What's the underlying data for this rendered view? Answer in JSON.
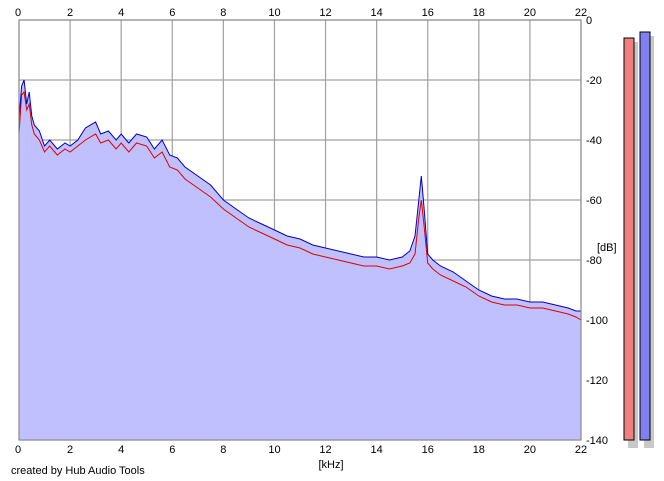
{
  "chart_data": {
    "type": "area",
    "xlabel": "[kHz]",
    "ylabel": "[dB]",
    "xlim": [
      0,
      22
    ],
    "ylim": [
      -140,
      0
    ],
    "x_ticks": [
      0,
      2,
      4,
      6,
      8,
      10,
      12,
      14,
      16,
      18,
      20,
      22
    ],
    "y_ticks": [
      0,
      -20,
      -40,
      -60,
      -80,
      -100,
      -120,
      -140
    ],
    "x_tick_labels": [
      "0",
      "2",
      "4",
      "6",
      "8",
      "10",
      "12",
      "14",
      "16",
      "18",
      "20",
      "22"
    ],
    "y_tick_labels": [
      "0",
      "-20",
      "-40",
      "-60",
      "-80",
      "-100",
      "-120",
      "-140"
    ],
    "grid": true,
    "series": [
      {
        "color": "#0000c0",
        "fill": "#c0c0ff",
        "x": [
          0,
          0.1,
          0.2,
          0.3,
          0.4,
          0.5,
          0.6,
          0.8,
          1.0,
          1.2,
          1.5,
          1.8,
          2.0,
          2.3,
          2.6,
          3.0,
          3.2,
          3.5,
          3.8,
          4.0,
          4.3,
          4.6,
          5.0,
          5.3,
          5.6,
          5.9,
          6.2,
          6.5,
          7.0,
          7.5,
          8.0,
          8.5,
          9.0,
          9.5,
          10.0,
          10.5,
          11.0,
          11.5,
          12.0,
          12.5,
          13.0,
          13.5,
          14.0,
          14.5,
          15.0,
          15.3,
          15.5,
          15.65,
          15.75,
          15.85,
          16.0,
          16.2,
          16.5,
          17.0,
          17.5,
          18.0,
          18.5,
          19.0,
          19.5,
          20.0,
          20.5,
          21.0,
          21.5,
          21.8,
          22.0
        ],
        "values": [
          -33,
          -22,
          -20,
          -28,
          -24,
          -32,
          -35,
          -37,
          -42,
          -40,
          -43,
          -41,
          -42,
          -40,
          -36,
          -34,
          -38,
          -37,
          -40,
          -38,
          -41,
          -38,
          -39,
          -43,
          -40,
          -45,
          -46,
          -49,
          -52,
          -55,
          -60,
          -63,
          -66,
          -68,
          -70,
          -72,
          -73,
          -75,
          -76,
          -77,
          -78,
          -79,
          -79,
          -80,
          -79,
          -77,
          -72,
          -60,
          -52,
          -62,
          -78,
          -80,
          -82,
          -84,
          -87,
          -90,
          -92,
          -93,
          -93,
          -94,
          -94,
          -95,
          -96,
          -97,
          -97
        ]
      },
      {
        "color": "#e00000",
        "x": [
          0,
          0.1,
          0.2,
          0.3,
          0.4,
          0.5,
          0.6,
          0.8,
          1.0,
          1.2,
          1.5,
          1.8,
          2.0,
          2.3,
          2.6,
          3.0,
          3.2,
          3.5,
          3.8,
          4.0,
          4.3,
          4.6,
          5.0,
          5.3,
          5.6,
          5.9,
          6.2,
          6.5,
          7.0,
          7.5,
          8.0,
          8.5,
          9.0,
          9.5,
          10.0,
          10.5,
          11.0,
          11.5,
          12.0,
          12.5,
          13.0,
          13.5,
          14.0,
          14.5,
          15.0,
          15.3,
          15.5,
          15.65,
          15.75,
          15.85,
          16.0,
          16.2,
          16.5,
          17.0,
          17.5,
          18.0,
          18.5,
          19.0,
          19.5,
          20.0,
          20.5,
          21.0,
          21.5,
          21.8,
          22.0
        ],
        "values": [
          -38,
          -25,
          -24,
          -30,
          -28,
          -35,
          -38,
          -40,
          -44,
          -42,
          -45,
          -43,
          -44,
          -42,
          -40,
          -38,
          -41,
          -40,
          -43,
          -41,
          -44,
          -41,
          -42,
          -46,
          -44,
          -49,
          -50,
          -53,
          -56,
          -59,
          -63,
          -66,
          -69,
          -71,
          -73,
          -75,
          -76,
          -78,
          -79,
          -80,
          -81,
          -82,
          -82,
          -83,
          -82,
          -81,
          -78,
          -66,
          -60,
          -68,
          -81,
          -83,
          -85,
          -87,
          -89,
          -92,
          -94,
          -95,
          -95,
          -96,
          -96,
          -97,
          -98,
          -99,
          -100
        ]
      }
    ],
    "meters": [
      {
        "color": "#f08080",
        "value": -6
      },
      {
        "color": "#8080f0",
        "value": -4
      }
    ]
  },
  "footer": {
    "credit": "created by Hub Audio Tools"
  }
}
